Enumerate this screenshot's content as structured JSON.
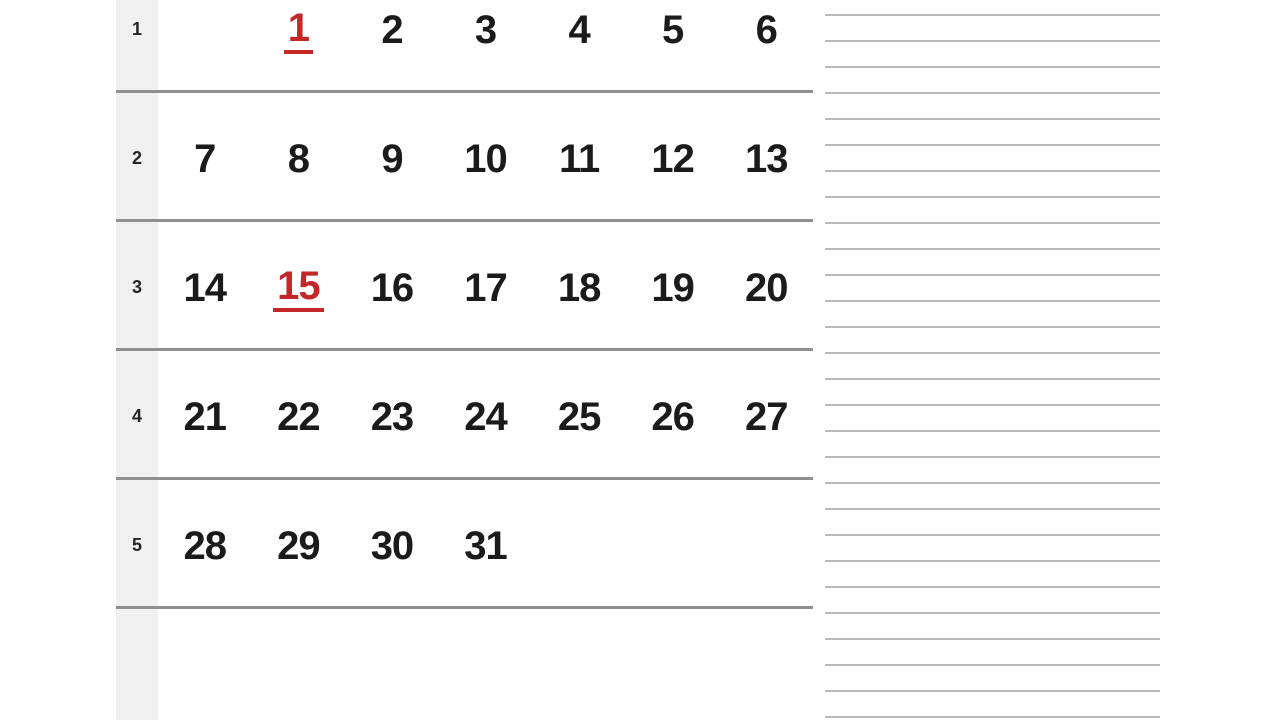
{
  "calendar": {
    "rows": [
      {
        "week": "1",
        "days": [
          "",
          "1",
          "2",
          "3",
          "4",
          "5",
          "6"
        ]
      },
      {
        "week": "2",
        "days": [
          "7",
          "8",
          "9",
          "10",
          "11",
          "12",
          "13"
        ]
      },
      {
        "week": "3",
        "days": [
          "14",
          "15",
          "16",
          "17",
          "18",
          "19",
          "20"
        ]
      },
      {
        "week": "4",
        "days": [
          "21",
          "22",
          "23",
          "24",
          "25",
          "26",
          "27"
        ]
      },
      {
        "week": "5",
        "days": [
          "28",
          "29",
          "30",
          "31",
          "",
          "",
          ""
        ]
      },
      {
        "week": "",
        "days": [
          "",
          "",
          "",
          "",
          "",
          "",
          ""
        ]
      }
    ],
    "highlighted_days": [
      "1",
      "15"
    ],
    "colors": {
      "day_text": "#1b1b1b",
      "highlight_red": "#c32727",
      "separator": "#8f8f8f",
      "week_strip_bg": "#f0f0f0",
      "note_line": "#b9b9b9"
    }
  },
  "notes": {
    "line_count": 28
  }
}
